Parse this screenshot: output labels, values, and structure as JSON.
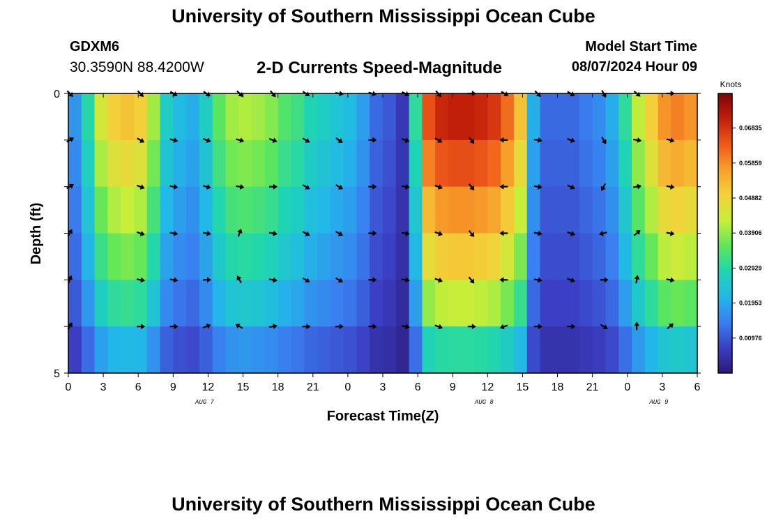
{
  "header": {
    "title": "University of Southern Mississippi Ocean Cube",
    "station": "GDXM6",
    "coordinates": "30.3590N  88.4200W",
    "subtitle": "2-D Currents Speed-Magnitude",
    "model_start_label": "Model Start Time",
    "model_start_value": "08/07/2024 Hour 09"
  },
  "footer": {
    "title": "University of Southern Mississippi Ocean Cube"
  },
  "chart_data": {
    "type": "heatmap",
    "xlabel": "Forecast Time(Z)",
    "ylabel": "Depth (ft)",
    "x_tick_labels": [
      "0",
      "3",
      "6",
      "9",
      "12",
      "15",
      "18",
      "21",
      "0",
      "3",
      "6",
      "9",
      "12",
      "15",
      "18",
      "21",
      "0",
      "3",
      "6"
    ],
    "date_labels": [
      {
        "text": "AUG 7",
        "x_index": 3.9
      },
      {
        "text": "AUG 8",
        "x_index": 11.9
      },
      {
        "text": "AUG 9",
        "x_index": 16.9
      }
    ],
    "y_tick_labels": [
      "0",
      "5"
    ],
    "ylim": [
      0,
      5
    ],
    "colorbar": {
      "label": "Knots",
      "ticks": [
        "0.06835",
        "0.05859",
        "0.04882",
        "0.03906",
        "0.02929",
        "0.01953",
        "0.00976"
      ],
      "tick_values": [
        0.06835,
        0.05859,
        0.04882,
        0.03906,
        0.02929,
        0.01953,
        0.00976
      ],
      "range": [
        0,
        0.078
      ]
    },
    "colormap": [
      "#2a1a7a",
      "#3b3ec2",
      "#3a7ef0",
      "#22b8e8",
      "#1fd6b0",
      "#5ee65a",
      "#c8ee3a",
      "#f3d23a",
      "#f7a12c",
      "#ee5a1a",
      "#c21f0a",
      "#7a0606"
    ],
    "grid_columns": 48,
    "row_depths_ft": [
      0,
      1,
      2,
      3,
      4,
      5
    ],
    "speed_profile_knots": [
      0.017,
      0.029,
      0.044,
      0.05,
      0.052,
      0.05,
      0.04,
      0.026,
      0.022,
      0.02,
      0.026,
      0.035,
      0.04,
      0.041,
      0.04,
      0.038,
      0.034,
      0.032,
      0.028,
      0.026,
      0.024,
      0.022,
      0.018,
      0.012,
      0.01,
      0.006,
      0.03,
      0.065,
      0.07,
      0.071,
      0.071,
      0.07,
      0.068,
      0.062,
      0.052,
      0.02,
      0.012,
      0.012,
      0.012,
      0.014,
      0.016,
      0.02,
      0.03,
      0.042,
      0.05,
      0.058,
      0.06,
      0.058
    ],
    "depth_factors": [
      1.0,
      0.92,
      0.82,
      0.72,
      0.6,
      0.42
    ],
    "rows": [
      {
        "depth": 0,
        "vector_angles_deg": [
          45,
          45,
          30,
          35,
          45,
          50,
          35,
          10,
          15,
          25,
          50,
          0,
          30,
          45,
          30,
          60,
          40,
          0,
          15,
          45
        ]
      },
      {
        "depth": 1,
        "vector_angles_deg": [
          -30,
          30,
          15,
          20,
          15,
          20,
          30,
          35,
          0,
          20,
          30,
          50,
          180,
          10,
          20,
          60,
          10,
          15,
          0,
          0
        ]
      },
      {
        "depth": 2,
        "vector_angles_deg": [
          -30,
          20,
          10,
          15,
          10,
          0,
          30,
          30,
          0,
          10,
          20,
          50,
          180,
          10,
          25,
          120,
          -10,
          10,
          0,
          0
        ]
      },
      {
        "depth": 3,
        "vector_angles_deg": [
          -60,
          20,
          10,
          10,
          -70,
          10,
          30,
          30,
          0,
          10,
          20,
          50,
          180,
          10,
          20,
          165,
          -40,
          10,
          0,
          0
        ]
      },
      {
        "depth": 4,
        "vector_angles_deg": [
          -70,
          10,
          10,
          0,
          -120,
          10,
          30,
          30,
          0,
          10,
          20,
          50,
          180,
          10,
          20,
          0,
          -80,
          10,
          0,
          0
        ]
      },
      {
        "depth": 5,
        "vector_angles_deg": [
          -60,
          0,
          0,
          -20,
          -150,
          -10,
          0,
          0,
          0,
          10,
          20,
          0,
          160,
          0,
          0,
          30,
          -90,
          -40,
          0,
          0
        ]
      }
    ]
  }
}
